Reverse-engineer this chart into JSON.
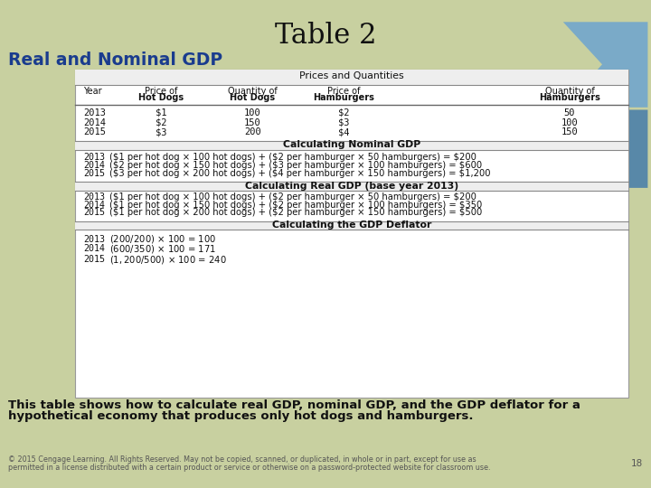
{
  "title": "Table 2",
  "subtitle": "Real and Nominal GDP",
  "bg_color": "#c8d0a0",
  "table_bg": "white",
  "header_title": "Prices and Quantities",
  "col_headers_line1": [
    "Year",
    "Price of",
    "Quantity of",
    "Price of",
    "Quantity of"
  ],
  "col_headers_line2": [
    "",
    "Hot Dogs",
    "Hot Dogs",
    "Hamburgers",
    "Hamburgers"
  ],
  "prices_data": [
    [
      "2013",
      "$1",
      "100",
      "$2",
      "50"
    ],
    [
      "2014",
      "$2",
      "150",
      "$3",
      "100"
    ],
    [
      "2015",
      "$3",
      "200",
      "$4",
      "150"
    ]
  ],
  "nominal_gdp_header": "Calculating Nominal GDP",
  "nominal_gdp_rows": [
    [
      "2013",
      "($1 per hot dog × 100 hot dogs) + ($2 per hamburger × 50 hamburgers) = $200"
    ],
    [
      "2014",
      "($2 per hot dog × 150 hot dogs) + ($3 per hamburger × 100 hamburgers) = $600"
    ],
    [
      "2015",
      "($3 per hot dog × 200 hot dogs) + ($4 per hamburger × 150 hamburgers) = $1,200"
    ]
  ],
  "real_gdp_header": "Calculating Real GDP (base year 2013)",
  "real_gdp_rows": [
    [
      "2013",
      "($1 per hot dog × 100 hot dogs) + ($2 per hamburger × 50 hamburgers) = $200"
    ],
    [
      "2014",
      "($1 per hot dog × 150 hot dogs) + ($2 per hamburger × 100 hamburgers) = $350"
    ],
    [
      "2015",
      "($1 per hot dog × 200 hot dogs) + ($2 per hamburger × 150 hamburgers) = $500"
    ]
  ],
  "deflator_header": "Calculating the GDP Deflator",
  "deflator_rows": [
    [
      "2013",
      "($200 / $200) × 100 = 100"
    ],
    [
      "2014",
      "($600 / $350) × 100 = 171"
    ],
    [
      "2015",
      "($1,200 / $500) × 100 = 240"
    ]
  ],
  "caption_line1": "This table shows how to calculate real GDP, nominal GDP, and the GDP deflator for a",
  "caption_line2": "hypothetical economy that produces only hot dogs and hamburgers.",
  "footer_line1": "© 2015 Cengage Learning. All Rights Reserved. May not be copied, scanned, or duplicated, in whole or in part, except for use as",
  "footer_line2": "permitted in a license distributed with a certain product or service or otherwise on a password-protected website for classroom use.",
  "page_num": "18",
  "title_color": "#111111",
  "subtitle_color": "#1a3c8e",
  "arrow_color1": "#7aaac8",
  "arrow_color2": "#5888a8"
}
